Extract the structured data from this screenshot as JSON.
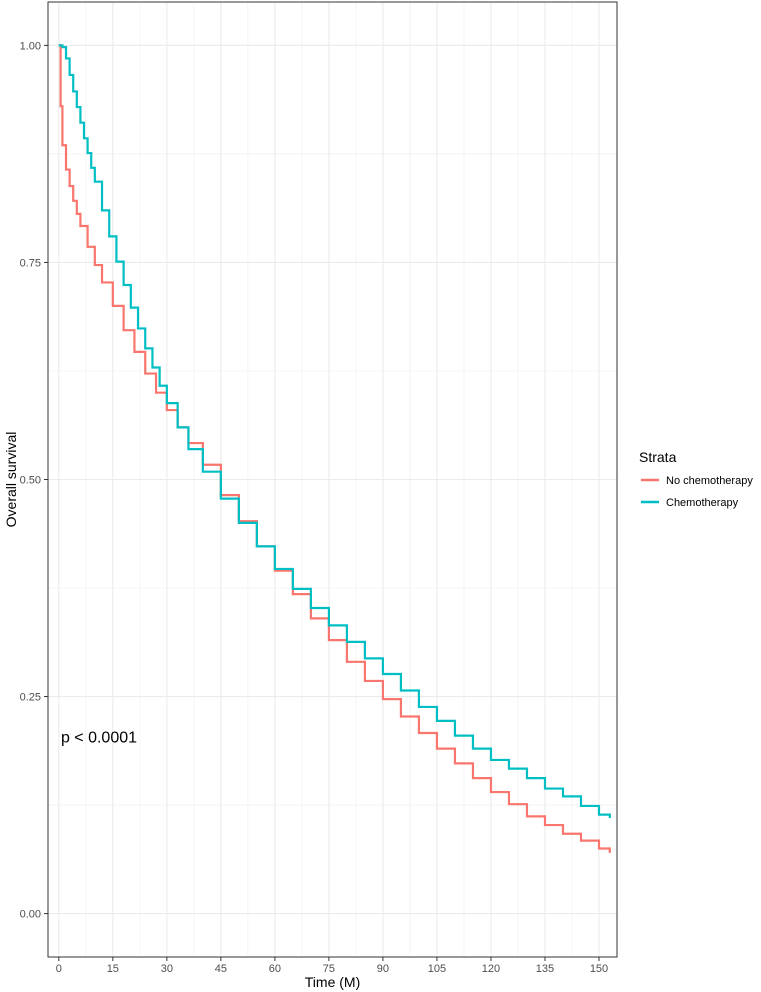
{
  "chart_data": {
    "type": "line",
    "step": true,
    "xlabel": "Time (M)",
    "ylabel": "Overall survival",
    "xlim": [
      -3,
      155
    ],
    "ylim": [
      -0.05,
      1.05
    ],
    "x_ticks": [
      0,
      15,
      30,
      45,
      60,
      75,
      90,
      105,
      120,
      135,
      150
    ],
    "x_tick_labels": [
      "0",
      "15",
      "30",
      "45",
      "60",
      "75",
      "90",
      "105",
      "120",
      "135",
      "150"
    ],
    "y_ticks": [
      0,
      0.25,
      0.5,
      0.75,
      1.0
    ],
    "y_tick_labels": [
      "0.00",
      "0.25",
      "0.50",
      "0.75",
      "1.00"
    ],
    "grid": true,
    "legend": {
      "title": "Strata",
      "position": "right"
    },
    "annotation": "p < 0.0001",
    "series": [
      {
        "name": "No chemotherapy",
        "color": "#F8766D",
        "x": [
          0,
          0.5,
          1,
          2,
          3,
          4,
          5,
          6,
          8,
          10,
          12,
          15,
          18,
          21,
          24,
          27,
          30,
          33,
          36,
          40,
          45,
          50,
          55,
          60,
          65,
          70,
          75,
          80,
          85,
          90,
          95,
          100,
          105,
          110,
          115,
          120,
          125,
          130,
          135,
          140,
          145,
          150,
          153
        ],
        "values": [
          1.0,
          0.93,
          0.885,
          0.857,
          0.838,
          0.821,
          0.806,
          0.792,
          0.768,
          0.747,
          0.727,
          0.7,
          0.672,
          0.647,
          0.622,
          0.6,
          0.58,
          0.56,
          0.542,
          0.517,
          0.482,
          0.452,
          0.423,
          0.395,
          0.368,
          0.34,
          0.315,
          0.29,
          0.268,
          0.247,
          0.227,
          0.208,
          0.19,
          0.173,
          0.156,
          0.14,
          0.126,
          0.112,
          0.102,
          0.092,
          0.084,
          0.075,
          0.07
        ]
      },
      {
        "name": "Chemotherapy",
        "color": "#00BFC4",
        "x": [
          0,
          1,
          2,
          3,
          4,
          5,
          6,
          7,
          8,
          9,
          10,
          12,
          14,
          16,
          18,
          20,
          22,
          24,
          26,
          28,
          30,
          33,
          36,
          40,
          45,
          50,
          55,
          60,
          65,
          70,
          75,
          80,
          85,
          90,
          95,
          100,
          105,
          110,
          115,
          120,
          125,
          130,
          135,
          140,
          145,
          150,
          153
        ],
        "values": [
          1.0,
          0.998,
          0.985,
          0.966,
          0.947,
          0.929,
          0.911,
          0.893,
          0.876,
          0.859,
          0.843,
          0.81,
          0.78,
          0.751,
          0.724,
          0.698,
          0.674,
          0.651,
          0.629,
          0.608,
          0.588,
          0.56,
          0.535,
          0.509,
          0.478,
          0.45,
          0.423,
          0.397,
          0.374,
          0.352,
          0.332,
          0.313,
          0.294,
          0.276,
          0.257,
          0.238,
          0.222,
          0.205,
          0.19,
          0.177,
          0.167,
          0.156,
          0.144,
          0.135,
          0.124,
          0.114,
          0.11
        ]
      }
    ]
  }
}
